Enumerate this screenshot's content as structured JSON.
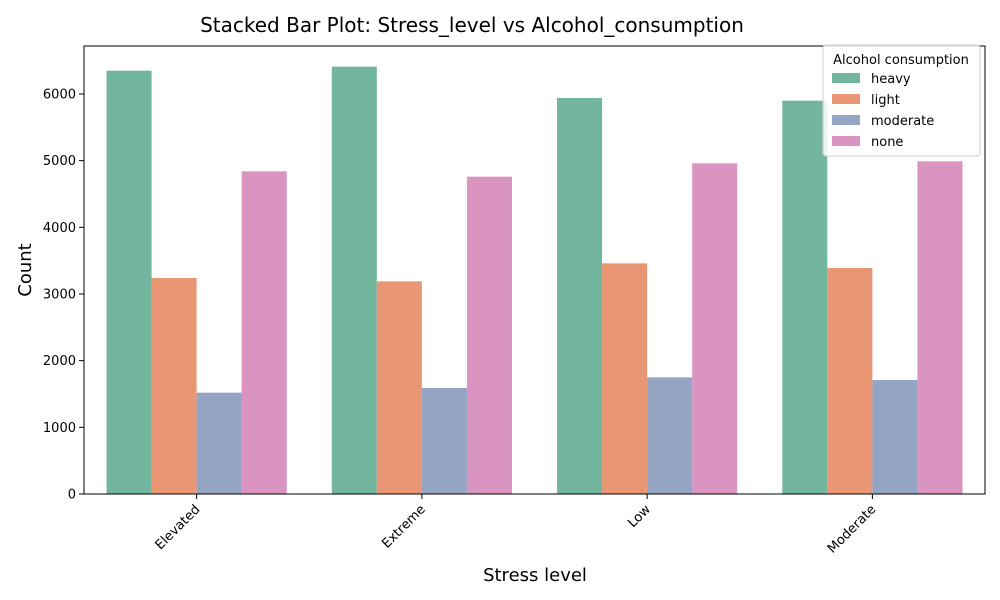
{
  "chart_data": {
    "type": "bar",
    "title": "Stacked Bar Plot: Stress_level vs Alcohol_consumption",
    "xlabel": "Stress level",
    "ylabel": "Count",
    "categories": [
      "Elevated",
      "Extreme",
      "Low",
      "Moderate"
    ],
    "ylim": [
      0,
      6720
    ],
    "yticks": [
      0,
      1000,
      2000,
      3000,
      4000,
      5000,
      6000
    ],
    "grid": false,
    "legend": {
      "title": "Alcohol consumption",
      "placement": "top-right"
    },
    "series": [
      {
        "name": "heavy",
        "color": "#72b6a0",
        "values": [
          6350,
          6410,
          5940,
          5900
        ]
      },
      {
        "name": "light",
        "color": "#e89674",
        "values": [
          3240,
          3190,
          3460,
          3390
        ]
      },
      {
        "name": "moderate",
        "color": "#94a4c3",
        "values": [
          1520,
          1590,
          1750,
          1710
        ]
      },
      {
        "name": "none",
        "color": "#da94c0",
        "values": [
          4840,
          4760,
          4960,
          4990
        ]
      }
    ]
  }
}
